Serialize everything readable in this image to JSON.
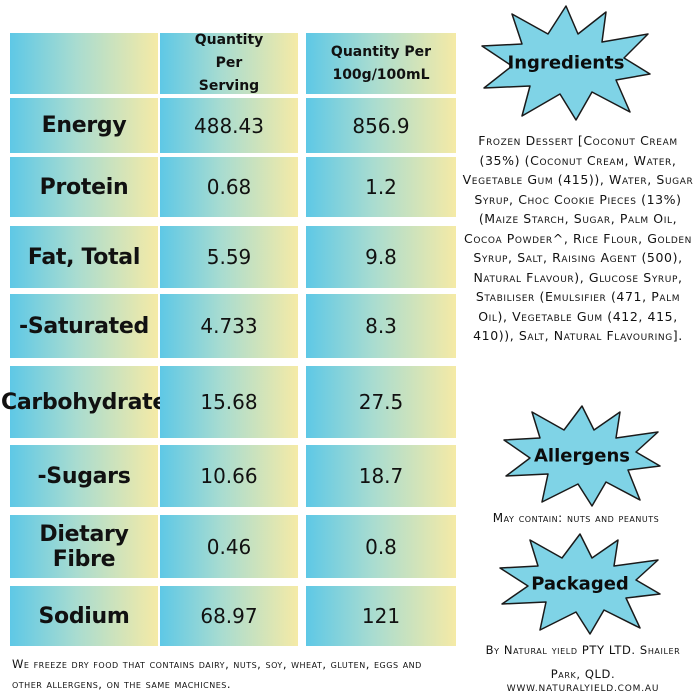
{
  "table": {
    "header_1": "Quantity Per Serving",
    "header_2": "Quantity Per 100g/100mL",
    "rows": [
      {
        "label": "Energy",
        "per_serving": "488.43",
        "per_100": "856.9"
      },
      {
        "label": "Protein",
        "per_serving": "0.68",
        "per_100": "1.2"
      },
      {
        "label": "Fat, Total",
        "per_serving": "5.59",
        "per_100": "9.8"
      },
      {
        "label": "-Saturated",
        "per_serving": "4.733",
        "per_100": "8.3"
      },
      {
        "label": "Carbohydrate",
        "per_serving": "15.68",
        "per_100": "27.5"
      },
      {
        "label": "-Sugars",
        "per_serving": "10.66",
        "per_100": "18.7"
      },
      {
        "label": "Dietary Fibre",
        "per_serving": "0.46",
        "per_100": "0.8"
      },
      {
        "label": "Sodium",
        "per_serving": "68.97",
        "per_100": "121"
      }
    ]
  },
  "ingredients": {
    "title": "Ingredients",
    "text": "Frozen Dessert [Coconut Cream (35%) (Coconut Cream, Water, Vegetable Gum (415)), Water, Sugar Syrup, Choc Cookie Pieces (13%) (Maize Starch, Sugar, Palm Oil, Cocoa Powder^, Rice Flour, Golden Syrup, Salt, Raising Agent (500), Natural Flavour), Glucose Syrup, Stabiliser (Emulsifier (471, Palm Oil), Vegetable Gum (412, 415, 410)), Salt, Natural Flavouring]."
  },
  "allergens": {
    "title": "Allergens",
    "text": "May contain: nuts and peanuts"
  },
  "packaged": {
    "title": "Packaged",
    "text": "By Natural yield PTY LTD.  Shailer Park, QLD.",
    "website": "WWW.NATURALYIELD.COM.AU"
  },
  "footer": "We freeze dry food that contains dairy, nuts, soy, wheat, gluten, eggs and other allergens, on the same machicnes.",
  "colors": {
    "gradient_left": "#5ec8e6",
    "gradient_right": "#f5eaa6",
    "burst_fill": "#7fd3e6",
    "burst_stroke": "#1a1a1a"
  }
}
